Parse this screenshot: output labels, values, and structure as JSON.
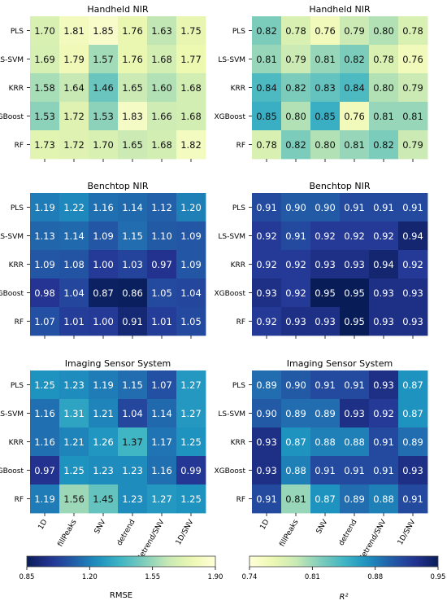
{
  "chart_data": [
    {
      "type": "heatmap",
      "title": "Handheld NIR",
      "metric": "RMSE",
      "rows": [
        "PLS",
        "LS-SVM",
        "KRR",
        "XGBoost",
        "RF"
      ],
      "cols": [
        "1D",
        "fillPeaks",
        "SNV",
        "detrend",
        "detrend/SNV",
        "1D/SNV"
      ],
      "values": [
        [
          1.7,
          1.81,
          1.85,
          1.76,
          1.63,
          1.75
        ],
        [
          1.69,
          1.79,
          1.57,
          1.76,
          1.68,
          1.77
        ],
        [
          1.58,
          1.64,
          1.46,
          1.65,
          1.6,
          1.68
        ],
        [
          1.53,
          1.72,
          1.53,
          1.83,
          1.66,
          1.68
        ],
        [
          1.73,
          1.72,
          1.7,
          1.65,
          1.68,
          1.82
        ]
      ]
    },
    {
      "type": "heatmap",
      "title": "Handheld NIR",
      "metric": "R2",
      "rows": [
        "PLS",
        "LS-SVM",
        "KRR",
        "XGBoost",
        "RF"
      ],
      "cols": [
        "1D",
        "fillPeaks",
        "SNV",
        "detrend",
        "detrend/SNV",
        "1D/SNV"
      ],
      "values": [
        [
          0.82,
          0.78,
          0.76,
          0.79,
          0.8,
          0.78
        ],
        [
          0.81,
          0.79,
          0.81,
          0.82,
          0.78,
          0.76
        ],
        [
          0.84,
          0.82,
          0.83,
          0.84,
          0.8,
          0.79
        ],
        [
          0.85,
          0.8,
          0.85,
          0.76,
          0.81,
          0.81
        ],
        [
          0.78,
          0.82,
          0.8,
          0.81,
          0.82,
          0.79
        ]
      ]
    },
    {
      "type": "heatmap",
      "title": "Benchtop NIR",
      "metric": "RMSE",
      "rows": [
        "PLS",
        "LS-SVM",
        "KRR",
        "XGBoost",
        "RF"
      ],
      "cols": [
        "1D",
        "fillPeaks",
        "SNV",
        "detrend",
        "detrend/SNV",
        "1D/SNV"
      ],
      "values": [
        [
          1.19,
          1.22,
          1.16,
          1.14,
          1.12,
          1.2
        ],
        [
          1.13,
          1.14,
          1.09,
          1.15,
          1.1,
          1.09
        ],
        [
          1.09,
          1.08,
          1.0,
          1.03,
          0.97,
          1.09
        ],
        [
          0.98,
          1.04,
          0.87,
          0.86,
          1.05,
          1.04
        ],
        [
          1.07,
          1.01,
          1.0,
          0.91,
          1.01,
          1.05
        ]
      ]
    },
    {
      "type": "heatmap",
      "title": "Benchtop NIR",
      "metric": "R2",
      "rows": [
        "PLS",
        "LS-SVM",
        "KRR",
        "XGBoost",
        "RF"
      ],
      "cols": [
        "1D",
        "fillPeaks",
        "SNV",
        "detrend",
        "detrend/SNV",
        "1D/SNV"
      ],
      "values": [
        [
          0.91,
          0.9,
          0.9,
          0.91,
          0.91,
          0.91
        ],
        [
          0.92,
          0.91,
          0.92,
          0.92,
          0.92,
          0.94
        ],
        [
          0.92,
          0.92,
          0.93,
          0.93,
          0.94,
          0.92
        ],
        [
          0.93,
          0.92,
          0.95,
          0.95,
          0.93,
          0.93
        ],
        [
          0.92,
          0.93,
          0.93,
          0.95,
          0.93,
          0.93
        ]
      ]
    },
    {
      "type": "heatmap",
      "title": "Imaging Sensor System",
      "metric": "RMSE",
      "rows": [
        "PLS",
        "LS-SVM",
        "KRR",
        "XGBoost",
        "RF"
      ],
      "cols": [
        "1D",
        "fillPeaks",
        "SNV",
        "detrend",
        "detrend/SNV",
        "1D/SNV"
      ],
      "values": [
        [
          1.25,
          1.23,
          1.19,
          1.15,
          1.07,
          1.27
        ],
        [
          1.16,
          1.31,
          1.21,
          1.04,
          1.14,
          1.27
        ],
        [
          1.16,
          1.21,
          1.26,
          1.37,
          1.17,
          1.25
        ],
        [
          0.97,
          1.25,
          1.23,
          1.23,
          1.16,
          0.99
        ],
        [
          1.19,
          1.56,
          1.45,
          1.23,
          1.27,
          1.25
        ]
      ]
    },
    {
      "type": "heatmap",
      "title": "Imaging Sensor System",
      "metric": "R2",
      "rows": [
        "PLS",
        "LS-SVM",
        "KRR",
        "XGBoost",
        "RF"
      ],
      "cols": [
        "1D",
        "fillPeaks",
        "SNV",
        "detrend",
        "detrend/SNV",
        "1D/SNV"
      ],
      "values": [
        [
          0.89,
          0.9,
          0.91,
          0.91,
          0.93,
          0.87
        ],
        [
          0.9,
          0.89,
          0.89,
          0.93,
          0.92,
          0.87
        ],
        [
          0.93,
          0.87,
          0.88,
          0.88,
          0.91,
          0.89
        ],
        [
          0.93,
          0.88,
          0.91,
          0.91,
          0.91,
          0.93
        ],
        [
          0.91,
          0.81,
          0.87,
          0.89,
          0.88,
          0.91
        ]
      ]
    }
  ],
  "colorbars": {
    "RMSE": {
      "label": "RMSE",
      "range": [
        0.85,
        1.9
      ],
      "ticks": [
        "0.85",
        "1.20",
        "1.55",
        "1.90"
      ],
      "colormap": "YlGnBu_r"
    },
    "R2": {
      "label": "R²",
      "range": [
        0.74,
        0.95
      ],
      "ticks": [
        "0.74",
        "0.81",
        "0.88",
        "0.95"
      ],
      "colormap": "YlGnBu"
    }
  },
  "colormap_stops": [
    "#ffffd9",
    "#edf8b1",
    "#c7e9b4",
    "#7fcdbb",
    "#41b6c4",
    "#1d91c0",
    "#225ea8",
    "#253494",
    "#081d58"
  ]
}
